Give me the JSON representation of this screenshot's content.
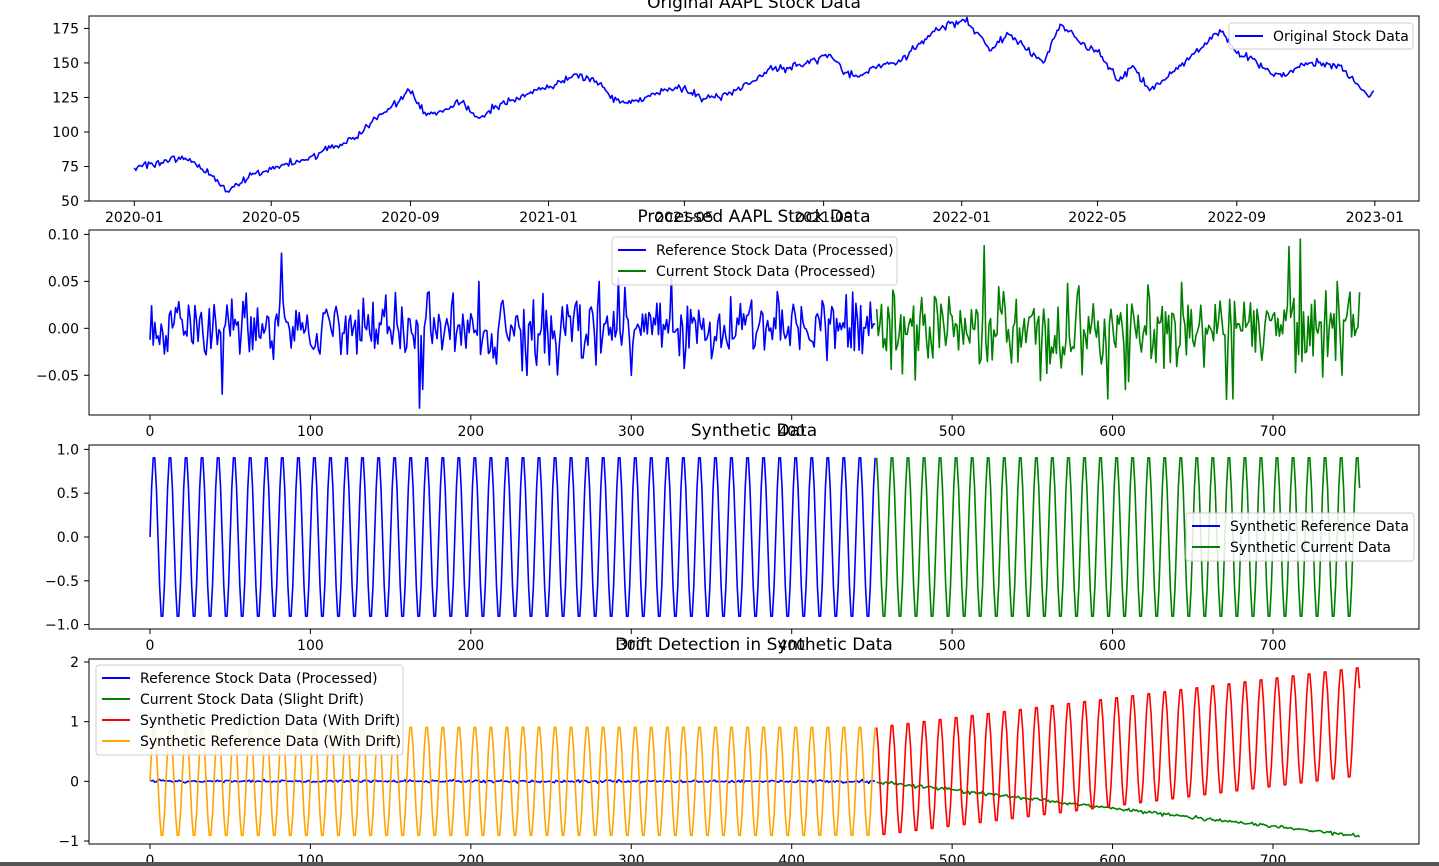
{
  "colors": {
    "blue": "#0000ff",
    "green": "#008000",
    "red": "#ff0000",
    "orange": "#ffa500",
    "axes": "#000000",
    "background": "#ffffff"
  },
  "chart_data": [
    {
      "type": "line",
      "title": "Original AAPL Stock Data",
      "xlabel": "",
      "ylabel": "",
      "x_is_date": true,
      "xlim": [
        "2019-11-22",
        "2023-02-09"
      ],
      "ylim": [
        50,
        184
      ],
      "xticks": [
        {
          "value": "2020-01-01",
          "label": "2020-01"
        },
        {
          "value": "2020-05-01",
          "label": "2020-05"
        },
        {
          "value": "2020-09-01",
          "label": "2020-09"
        },
        {
          "value": "2021-01-01",
          "label": "2021-01"
        },
        {
          "value": "2021-05-01",
          "label": "2021-05"
        },
        {
          "value": "2021-09-01",
          "label": "2021-09"
        },
        {
          "value": "2022-01-01",
          "label": "2022-01"
        },
        {
          "value": "2022-05-01",
          "label": "2022-05"
        },
        {
          "value": "2022-09-01",
          "label": "2022-09"
        },
        {
          "value": "2023-01-01",
          "label": "2023-01"
        }
      ],
      "yticks": [
        50,
        75,
        100,
        125,
        150,
        175
      ],
      "legend_position": "upper-right",
      "series": [
        {
          "name": "Original Stock Data",
          "color": "#0000ff",
          "points": [
            [
              "2020-01-01",
              74
            ],
            [
              "2020-01-15",
              77
            ],
            [
              "2020-02-01",
              79
            ],
            [
              "2020-02-15",
              81
            ],
            [
              "2020-03-01",
              73
            ],
            [
              "2020-03-10",
              68
            ],
            [
              "2020-03-23",
              57
            ],
            [
              "2020-04-01",
              62
            ],
            [
              "2020-04-15",
              70
            ],
            [
              "2020-05-01",
              73
            ],
            [
              "2020-05-15",
              77
            ],
            [
              "2020-06-01",
              80
            ],
            [
              "2020-06-15",
              86
            ],
            [
              "2020-07-01",
              91
            ],
            [
              "2020-07-15",
              96
            ],
            [
              "2020-08-01",
              110
            ],
            [
              "2020-08-15",
              118
            ],
            [
              "2020-08-31",
              130
            ],
            [
              "2020-09-15",
              112
            ],
            [
              "2020-10-01",
              116
            ],
            [
              "2020-10-15",
              121
            ],
            [
              "2020-11-01",
              110
            ],
            [
              "2020-11-15",
              119
            ],
            [
              "2020-12-01",
              123
            ],
            [
              "2020-12-15",
              128
            ],
            [
              "2021-01-01",
              132
            ],
            [
              "2021-01-26",
              142
            ],
            [
              "2021-02-15",
              135
            ],
            [
              "2021-03-05",
              121
            ],
            [
              "2021-03-20",
              123
            ],
            [
              "2021-04-05",
              127
            ],
            [
              "2021-04-26",
              134
            ],
            [
              "2021-05-15",
              125
            ],
            [
              "2021-06-01",
              125
            ],
            [
              "2021-06-15",
              130
            ],
            [
              "2021-07-01",
              137
            ],
            [
              "2021-07-15",
              146
            ],
            [
              "2021-08-01",
              146
            ],
            [
              "2021-08-15",
              149
            ],
            [
              "2021-09-07",
              156
            ],
            [
              "2021-09-20",
              143
            ],
            [
              "2021-10-05",
              141
            ],
            [
              "2021-10-20",
              149
            ],
            [
              "2021-11-05",
              150
            ],
            [
              "2021-11-20",
              160
            ],
            [
              "2021-12-05",
              171
            ],
            [
              "2021-12-15",
              177
            ],
            [
              "2022-01-03",
              181
            ],
            [
              "2022-01-15",
              172
            ],
            [
              "2022-01-27",
              159
            ],
            [
              "2022-02-10",
              172
            ],
            [
              "2022-02-25",
              162
            ],
            [
              "2022-03-14",
              150
            ],
            [
              "2022-03-29",
              178
            ],
            [
              "2022-04-15",
              165
            ],
            [
              "2022-05-01",
              158
            ],
            [
              "2022-05-20",
              137
            ],
            [
              "2022-06-01",
              148
            ],
            [
              "2022-06-16",
              130
            ],
            [
              "2022-07-01",
              139
            ],
            [
              "2022-07-15",
              150
            ],
            [
              "2022-08-01",
              161
            ],
            [
              "2022-08-17",
              174
            ],
            [
              "2022-09-01",
              157
            ],
            [
              "2022-09-15",
              153
            ],
            [
              "2022-10-01",
              142
            ],
            [
              "2022-10-15",
              141
            ],
            [
              "2022-11-01",
              150
            ],
            [
              "2022-11-15",
              148
            ],
            [
              "2022-12-01",
              148
            ],
            [
              "2022-12-15",
              135
            ],
            [
              "2022-12-28",
              126
            ],
            [
              "2022-12-31",
              130
            ]
          ]
        }
      ]
    },
    {
      "type": "line",
      "title": "Processed AAPL Stock Data",
      "xlabel": "",
      "ylabel": "",
      "xlim": [
        -38,
        791
      ],
      "ylim": [
        -0.0923,
        0.1047
      ],
      "xticks": [
        0,
        100,
        200,
        300,
        400,
        500,
        600,
        700
      ],
      "yticks": [
        {
          "value": 0.1,
          "label": "0.10"
        },
        {
          "value": 0.05,
          "label": "0.05"
        },
        {
          "value": 0.0,
          "label": "0.00"
        },
        {
          "value": -0.05,
          "label": "−0.05"
        }
      ],
      "legend_position": "upper-center",
      "series": [
        {
          "name": "Reference Stock Data (Processed)",
          "color": "#0000ff",
          "x_range": [
            0,
            452
          ],
          "noise_std": 0.017,
          "spikes": [
            [
              45,
              -0.07
            ],
            [
              82,
              0.08
            ],
            [
              168,
              -0.085
            ],
            [
              170,
              -0.065
            ],
            [
              205,
              0.05
            ],
            [
              235,
              -0.05
            ],
            [
              280,
              0.05
            ],
            [
              300,
              -0.05
            ],
            [
              325,
              0.055
            ]
          ]
        },
        {
          "name": "Current Stock Data (Processed)",
          "color": "#008000",
          "x_range": [
            453,
            754
          ],
          "noise_std": 0.022,
          "spikes": [
            [
              477,
              -0.055
            ],
            [
              520,
              0.088
            ],
            [
              597,
              -0.075
            ],
            [
              608,
              -0.065
            ],
            [
              675,
              -0.075
            ],
            [
              710,
              0.087
            ],
            [
              717,
              0.095
            ],
            [
              740,
              0.05
            ]
          ]
        }
      ]
    },
    {
      "type": "line",
      "title": "Synthetic Data",
      "xlabel": "",
      "ylabel": "",
      "xlim": [
        -38,
        791
      ],
      "ylim": [
        -1.05,
        1.05
      ],
      "xticks": [
        0,
        100,
        200,
        300,
        400,
        500,
        600,
        700
      ],
      "yticks": [
        {
          "value": 1.0,
          "label": "1.0"
        },
        {
          "value": 0.5,
          "label": "0.5"
        },
        {
          "value": 0.0,
          "label": "0.0"
        },
        {
          "value": -0.5,
          "label": "−0.5"
        },
        {
          "value": -1.0,
          "label": "−1.0"
        }
      ],
      "legend_position": "center-right",
      "series": [
        {
          "name": "Synthetic Reference Data",
          "color": "#0000ff",
          "x_range": [
            0,
            452
          ],
          "function": "sin",
          "period": 10,
          "amplitude": 0.95
        },
        {
          "name": "Synthetic Current Data",
          "color": "#008000",
          "x_range": [
            453,
            754
          ],
          "function": "sin",
          "period": 10,
          "amplitude": 0.95
        }
      ]
    },
    {
      "type": "line",
      "title": "Drift Detection in Synthetic Data",
      "xlabel": "",
      "ylabel": "",
      "xlim": [
        -38,
        791
      ],
      "ylim": [
        -1.05,
        2.05
      ],
      "xticks": [
        0,
        100,
        200,
        300,
        400,
        500,
        600,
        700
      ],
      "yticks": [
        {
          "value": 2,
          "label": "2"
        },
        {
          "value": 1,
          "label": "1"
        },
        {
          "value": 0,
          "label": "0"
        },
        {
          "value": -1,
          "label": "−1"
        }
      ],
      "legend_position": "upper-left",
      "series": [
        {
          "name": "Reference Stock Data (Processed)",
          "color": "#0000ff",
          "x_range": [
            0,
            452
          ],
          "kind": "noise",
          "noise_std": 0.012
        },
        {
          "name": "Current Stock Data (Slight Drift)",
          "color": "#008000",
          "x_range": [
            453,
            754
          ],
          "kind": "drift-noise",
          "start": 0.0,
          "end": -0.92,
          "noise_std": 0.015
        },
        {
          "name": "Synthetic Prediction Data (With Drift)",
          "color": "#ff0000",
          "x_range": [
            453,
            754
          ],
          "kind": "sin-drift",
          "period": 10,
          "amplitude": 0.95,
          "drift_start": 0.0,
          "drift_end": 1.0
        },
        {
          "name": "Synthetic Reference Data (With Drift)",
          "color": "#ffa500",
          "x_range": [
            0,
            452
          ],
          "kind": "sin",
          "period": 10,
          "amplitude": 0.95
        }
      ]
    }
  ]
}
